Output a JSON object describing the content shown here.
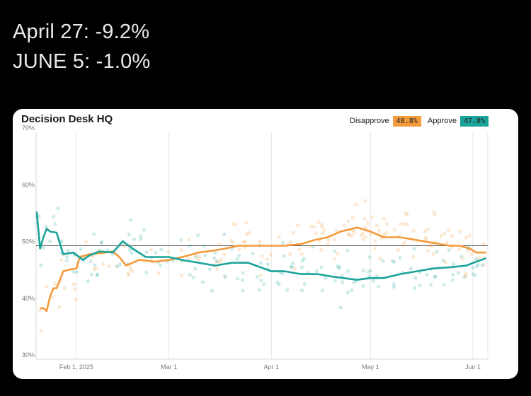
{
  "headline": {
    "line1": "April 27: -9.2%",
    "line2": "JUNE 5: -1.0%"
  },
  "card": {
    "brand": "Decision Desk HQ",
    "legend": [
      {
        "label": "Disapprove",
        "value": "48.8%",
        "color": "#f39a3a"
      },
      {
        "label": "Approve",
        "value": "47.8%",
        "color": "#1aa39a"
      }
    ]
  },
  "chart_data": {
    "type": "line",
    "x_unit": "date",
    "xlim": [
      "2025-01-21",
      "2025-06-05"
    ],
    "ylim": [
      30,
      70
    ],
    "y_ticks": [
      30,
      40,
      50,
      60,
      70
    ],
    "y_tick_labels": [
      "30%",
      "40%",
      "50%",
      "60%",
      "70%"
    ],
    "x_ticks": [
      {
        "date": "2025-02-01",
        "label": "Feb 1, 2025"
      },
      {
        "date": "2025-03-01",
        "label": "Mar 1"
      },
      {
        "date": "2025-04-01",
        "label": "Apr 1"
      },
      {
        "date": "2025-05-01",
        "label": "May 1"
      },
      {
        "date": "2025-06-01",
        "label": "Jun 1"
      }
    ],
    "reference_line": 50,
    "grid": "vertical",
    "legend_position": "top-right",
    "series": [
      {
        "name": "Disapprove",
        "color": "#f39a3a",
        "points": [
          [
            "2025-01-21",
            39
          ],
          [
            "2025-01-22",
            39
          ],
          [
            "2025-01-23",
            38.5
          ],
          [
            "2025-01-24",
            41
          ],
          [
            "2025-01-25",
            42.5
          ],
          [
            "2025-01-26",
            42.5
          ],
          [
            "2025-01-28",
            45.5
          ],
          [
            "2025-01-30",
            45.8
          ],
          [
            "2025-02-01",
            46
          ],
          [
            "2025-02-02",
            48
          ],
          [
            "2025-02-05",
            48.5
          ],
          [
            "2025-02-10",
            48.8
          ],
          [
            "2025-02-12",
            49
          ],
          [
            "2025-02-14",
            48
          ],
          [
            "2025-02-16",
            46.5
          ],
          [
            "2025-02-20",
            47.5
          ],
          [
            "2025-02-25",
            47.2
          ],
          [
            "2025-03-01",
            47.5
          ],
          [
            "2025-03-05",
            48
          ],
          [
            "2025-03-10",
            48.8
          ],
          [
            "2025-03-15",
            49.2
          ],
          [
            "2025-03-18",
            49.5
          ],
          [
            "2025-03-22",
            50
          ],
          [
            "2025-03-26",
            50
          ],
          [
            "2025-04-01",
            50
          ],
          [
            "2025-04-05",
            50
          ],
          [
            "2025-04-10",
            50.3
          ],
          [
            "2025-04-14",
            51
          ],
          [
            "2025-04-18",
            51.5
          ],
          [
            "2025-04-22",
            52.5
          ],
          [
            "2025-04-27",
            53.2
          ],
          [
            "2025-05-01",
            52.5
          ],
          [
            "2025-05-05",
            51.5
          ],
          [
            "2025-05-10",
            51.5
          ],
          [
            "2025-05-15",
            51
          ],
          [
            "2025-05-20",
            50.5
          ],
          [
            "2025-05-25",
            50
          ],
          [
            "2025-05-28",
            50
          ],
          [
            "2025-05-31",
            49.5
          ],
          [
            "2025-06-02",
            48.8
          ],
          [
            "2025-06-05",
            48.8
          ]
        ]
      },
      {
        "name": "Approve",
        "color": "#1aa39a",
        "points": [
          [
            "2025-01-20",
            56
          ],
          [
            "2025-01-21",
            49.5
          ],
          [
            "2025-01-22",
            51.5
          ],
          [
            "2025-01-23",
            53
          ],
          [
            "2025-01-24",
            52.5
          ],
          [
            "2025-01-26",
            52.3
          ],
          [
            "2025-01-28",
            48.5
          ],
          [
            "2025-01-31",
            48.8
          ],
          [
            "2025-02-03",
            47.5
          ],
          [
            "2025-02-05",
            48.3
          ],
          [
            "2025-02-08",
            49
          ],
          [
            "2025-02-12",
            48.8
          ],
          [
            "2025-02-15",
            50.8
          ],
          [
            "2025-02-18",
            49.5
          ],
          [
            "2025-02-22",
            48
          ],
          [
            "2025-02-26",
            48
          ],
          [
            "2025-03-01",
            48
          ],
          [
            "2025-03-05",
            47.5
          ],
          [
            "2025-03-10",
            47
          ],
          [
            "2025-03-15",
            46.5
          ],
          [
            "2025-03-20",
            47
          ],
          [
            "2025-03-25",
            47
          ],
          [
            "2025-04-01",
            45.5
          ],
          [
            "2025-04-05",
            45.5
          ],
          [
            "2025-04-10",
            45
          ],
          [
            "2025-04-15",
            45
          ],
          [
            "2025-04-20",
            44.5
          ],
          [
            "2025-04-27",
            44
          ],
          [
            "2025-05-01",
            44.3
          ],
          [
            "2025-05-05",
            44.3
          ],
          [
            "2025-05-10",
            45
          ],
          [
            "2025-05-15",
            45.5
          ],
          [
            "2025-05-20",
            46
          ],
          [
            "2025-05-25",
            46.2
          ],
          [
            "2025-05-30",
            46.5
          ],
          [
            "2025-06-02",
            47.2
          ],
          [
            "2025-06-05",
            47.8
          ]
        ]
      }
    ]
  }
}
